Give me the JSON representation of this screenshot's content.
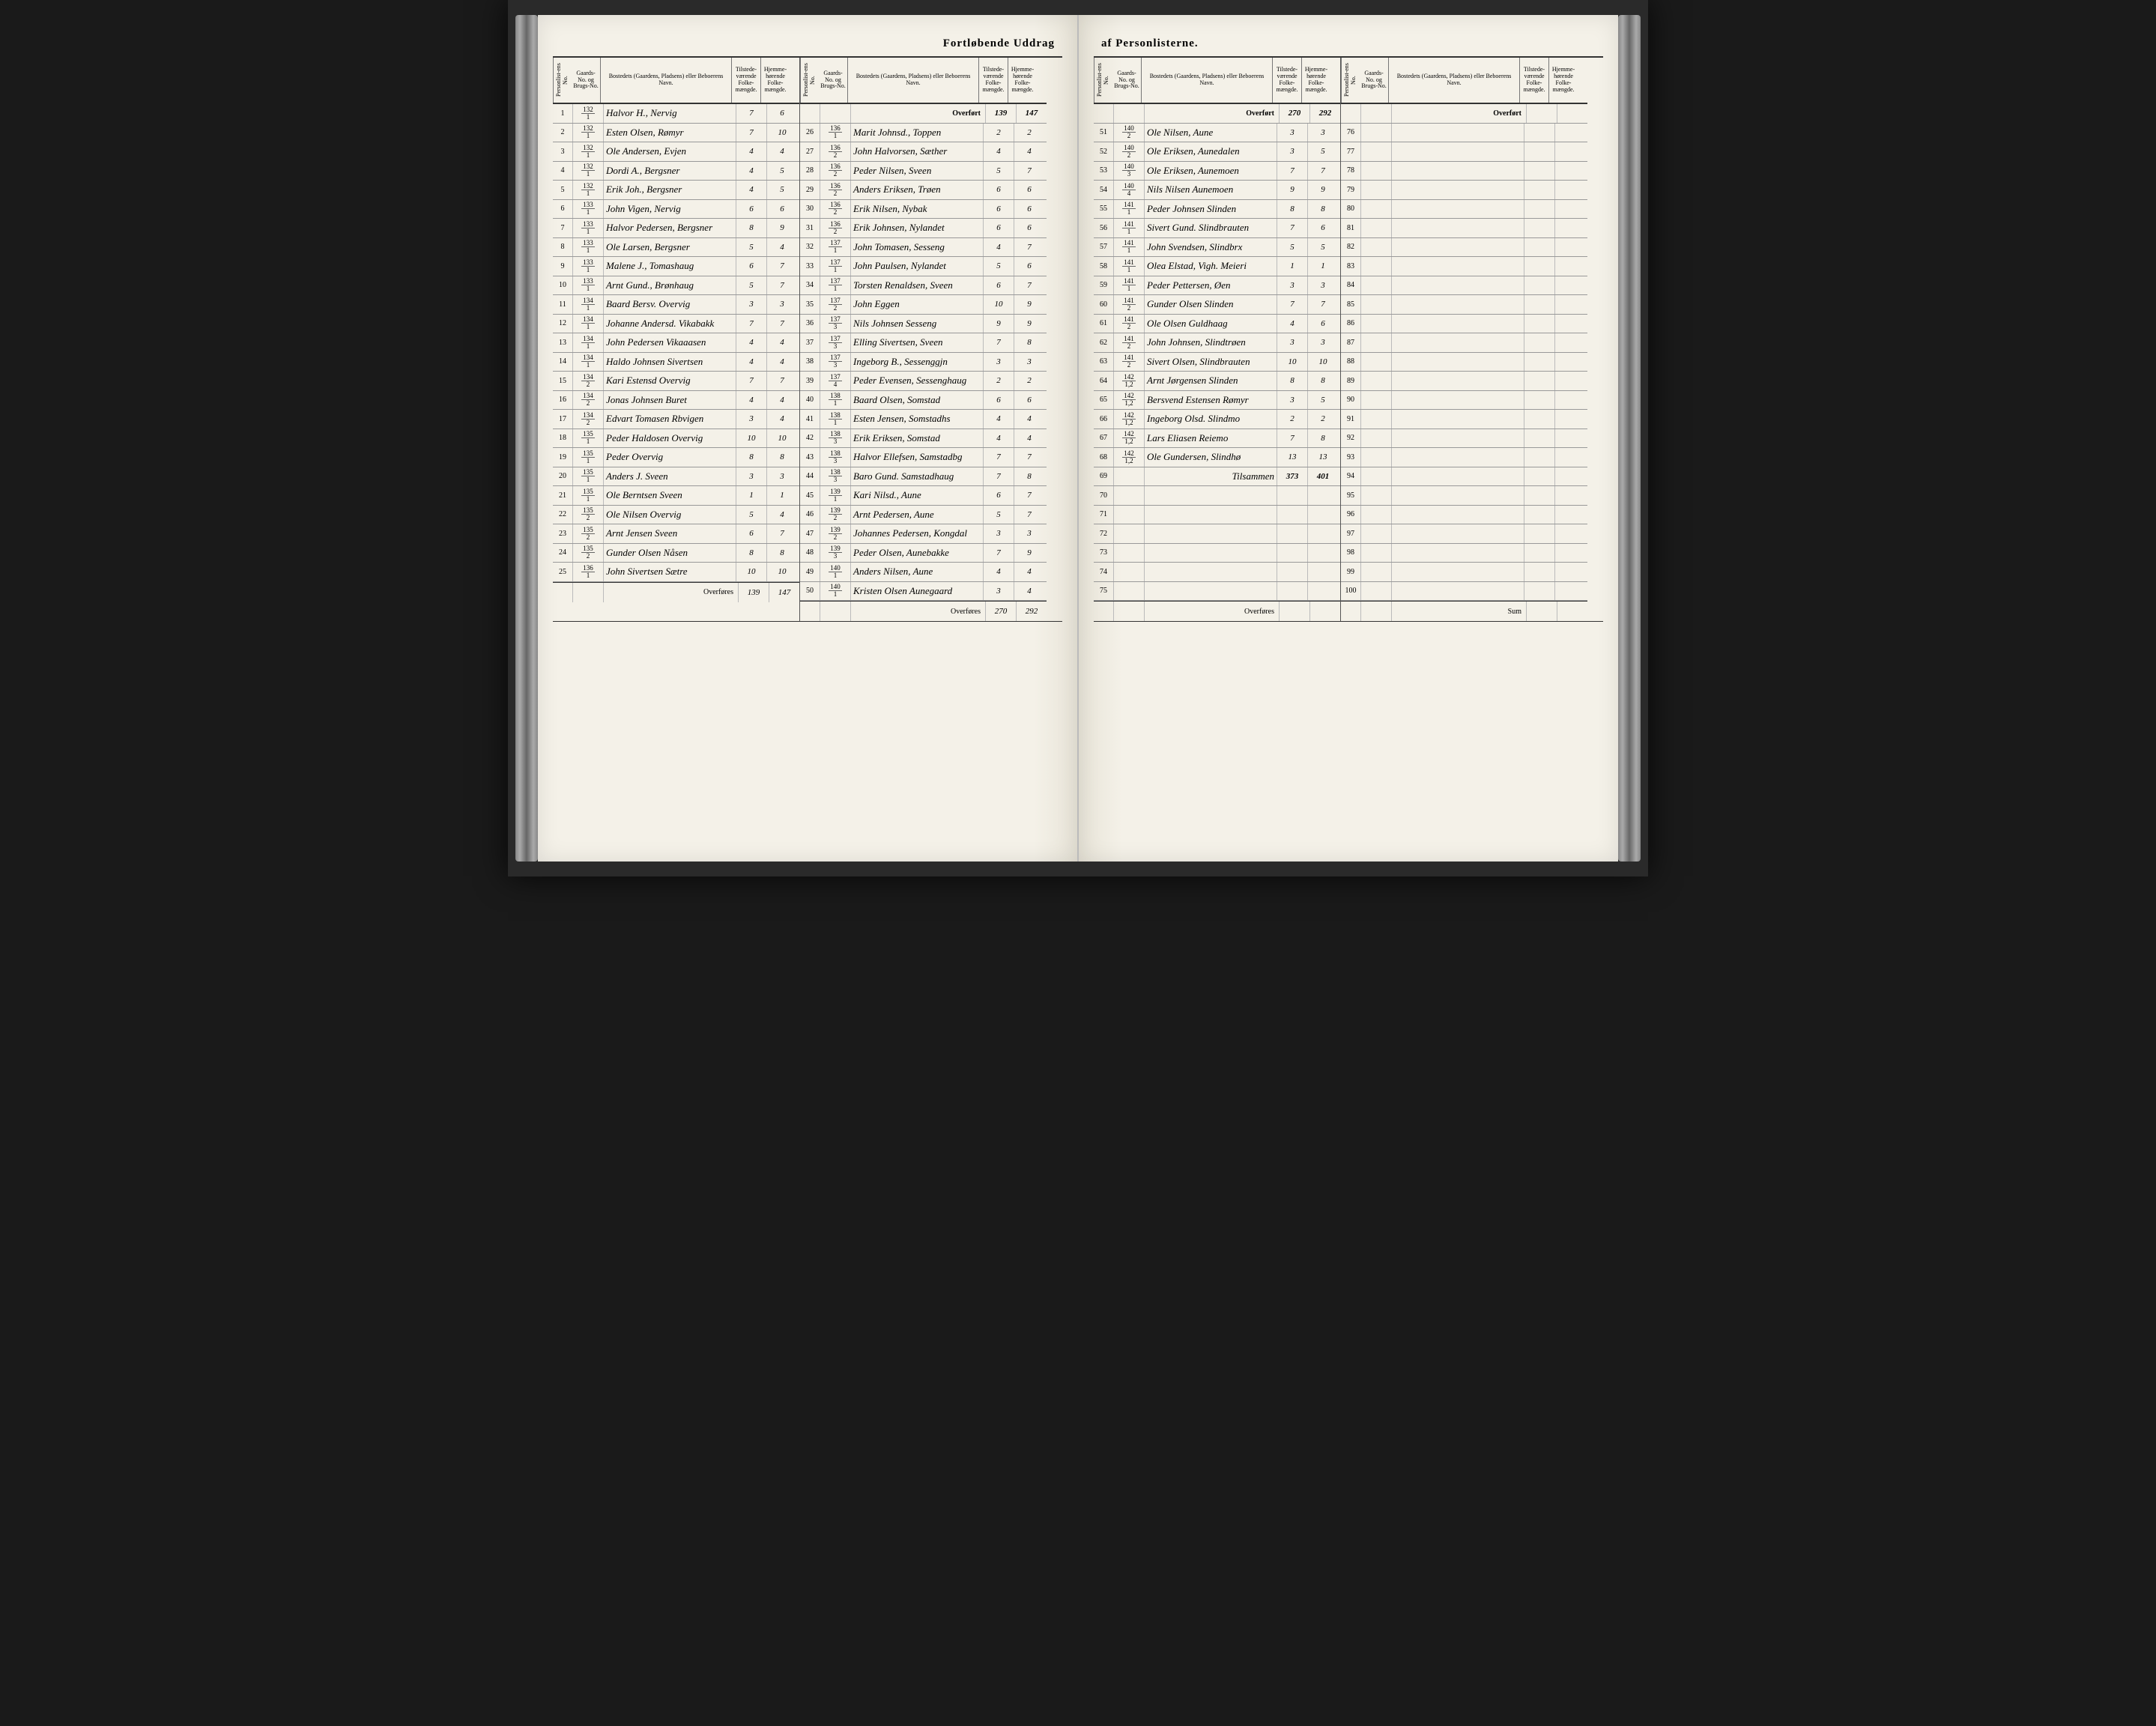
{
  "title": {
    "left": "Fortløbende Uddrag",
    "right": "af Personlisterne."
  },
  "headers": {
    "person": "Personlist-ens No.",
    "gaard": "Gaards-No. og Brugs-No.",
    "bosted": "Bostedets (Gaardens, Pladsens) eller Beboerens Navn.",
    "tilst": "Tilstede-værende Folke-mængde.",
    "hjem": "Hjemme-hørende Folke-mængde."
  },
  "carry": {
    "over": "Overført",
    "under": "Overføres",
    "sum": "Tilsammen",
    "sumlbl": "Sum"
  },
  "block1": {
    "rows": [
      {
        "n": "1",
        "g1": "132",
        "g2": "1",
        "b": "Halvor H., Nervig",
        "t": "7",
        "h": "6"
      },
      {
        "n": "2",
        "g1": "132",
        "g2": "1",
        "b": "Esten Olsen, Rømyr",
        "t": "7",
        "h": "10"
      },
      {
        "n": "3",
        "g1": "132",
        "g2": "1",
        "b": "Ole Andersen, Evjen",
        "t": "4",
        "h": "4"
      },
      {
        "n": "4",
        "g1": "132",
        "g2": "1",
        "b": "Dordi A., Bergsner",
        "t": "4",
        "h": "5"
      },
      {
        "n": "5",
        "g1": "132",
        "g2": "1",
        "b": "Erik Joh., Bergsner",
        "t": "4",
        "h": "5"
      },
      {
        "n": "6",
        "g1": "133",
        "g2": "1",
        "b": "John Vigen, Nervig",
        "t": "6",
        "h": "6"
      },
      {
        "n": "7",
        "g1": "133",
        "g2": "1",
        "b": "Halvor Pedersen, Bergsner",
        "t": "8",
        "h": "9"
      },
      {
        "n": "8",
        "g1": "133",
        "g2": "1",
        "b": "Ole Larsen, Bergsner",
        "t": "5",
        "h": "4"
      },
      {
        "n": "9",
        "g1": "133",
        "g2": "1",
        "b": "Malene J., Tomashaug",
        "t": "6",
        "h": "7"
      },
      {
        "n": "10",
        "g1": "133",
        "g2": "1",
        "b": "Arnt Gund., Brønhaug",
        "t": "5",
        "h": "7"
      },
      {
        "n": "11",
        "g1": "134",
        "g2": "1",
        "b": "Baard Bersv. Overvig",
        "t": "3",
        "h": "3"
      },
      {
        "n": "12",
        "g1": "134",
        "g2": "1",
        "b": "Johanne Andersd. Vikabakk",
        "t": "7",
        "h": "7"
      },
      {
        "n": "13",
        "g1": "134",
        "g2": "1",
        "b": "John Pedersen Vikaaasen",
        "t": "4",
        "h": "4"
      },
      {
        "n": "14",
        "g1": "134",
        "g2": "1",
        "b": "Haldo Johnsen Sivertsen",
        "t": "4",
        "h": "4"
      },
      {
        "n": "15",
        "g1": "134",
        "g2": "2",
        "b": "Kari Estensd Overvig",
        "t": "7",
        "h": "7"
      },
      {
        "n": "16",
        "g1": "134",
        "g2": "2",
        "b": "Jonas Johnsen Buret",
        "t": "4",
        "h": "4"
      },
      {
        "n": "17",
        "g1": "134",
        "g2": "2",
        "b": "Edvart Tomasen Rbvigen",
        "t": "3",
        "h": "4"
      },
      {
        "n": "18",
        "g1": "135",
        "g2": "1",
        "b": "Peder Haldosen Overvig",
        "t": "10",
        "h": "10"
      },
      {
        "n": "19",
        "g1": "135",
        "g2": "1",
        "b": "Peder Overvig",
        "t": "8",
        "h": "8"
      },
      {
        "n": "20",
        "g1": "135",
        "g2": "1",
        "b": "Anders J. Sveen",
        "t": "3",
        "h": "3"
      },
      {
        "n": "21",
        "g1": "135",
        "g2": "1",
        "b": "Ole Berntsen Sveen",
        "t": "1",
        "h": "1"
      },
      {
        "n": "22",
        "g1": "135",
        "g2": "2",
        "b": "Ole Nilsen Overvig",
        "t": "5",
        "h": "4"
      },
      {
        "n": "23",
        "g1": "135",
        "g2": "2",
        "b": "Arnt Jensen Sveen",
        "t": "6",
        "h": "7"
      },
      {
        "n": "24",
        "g1": "135",
        "g2": "2",
        "b": "Gunder Olsen Nåsen",
        "t": "8",
        "h": "8"
      },
      {
        "n": "25",
        "g1": "136",
        "g2": "1",
        "b": "John Sivertsen Sætre",
        "t": "10",
        "h": "10"
      }
    ],
    "carry_t": "139",
    "carry_h": "147"
  },
  "block2": {
    "over_t": "139",
    "over_h": "147",
    "rows": [
      {
        "n": "26",
        "g1": "136",
        "g2": "1",
        "b": "Marit Johnsd., Toppen",
        "t": "2",
        "h": "2"
      },
      {
        "n": "27",
        "g1": "136",
        "g2": "2",
        "b": "John Halvorsen, Sæther",
        "t": "4",
        "h": "4"
      },
      {
        "n": "28",
        "g1": "136",
        "g2": "2",
        "b": "Peder Nilsen, Sveen",
        "t": "5",
        "h": "7"
      },
      {
        "n": "29",
        "g1": "136",
        "g2": "2",
        "b": "Anders Eriksen, Trøen",
        "t": "6",
        "h": "6"
      },
      {
        "n": "30",
        "g1": "136",
        "g2": "2",
        "b": "Erik Nilsen, Nybak",
        "t": "6",
        "h": "6"
      },
      {
        "n": "31",
        "g1": "136",
        "g2": "2",
        "b": "Erik Johnsen, Nylandet",
        "t": "6",
        "h": "6"
      },
      {
        "n": "32",
        "g1": "137",
        "g2": "1",
        "b": "John Tomasen, Sesseng",
        "t": "4",
        "h": "7"
      },
      {
        "n": "33",
        "g1": "137",
        "g2": "1",
        "b": "John Paulsen, Nylandet",
        "t": "5",
        "h": "6"
      },
      {
        "n": "34",
        "g1": "137",
        "g2": "1",
        "b": "Torsten Renaldsen, Sveen",
        "t": "6",
        "h": "7"
      },
      {
        "n": "35",
        "g1": "137",
        "g2": "2",
        "b": "John Eggen",
        "t": "10",
        "h": "9"
      },
      {
        "n": "36",
        "g1": "137",
        "g2": "3",
        "b": "Nils Johnsen Sesseng",
        "t": "9",
        "h": "9"
      },
      {
        "n": "37",
        "g1": "137",
        "g2": "3",
        "b": "Elling Sivertsen, Sveen",
        "t": "7",
        "h": "8"
      },
      {
        "n": "38",
        "g1": "137",
        "g2": "3",
        "b": "Ingeborg B., Sessenggjn",
        "t": "3",
        "h": "3"
      },
      {
        "n": "39",
        "g1": "137",
        "g2": "4",
        "b": "Peder Evensen, Sessenghaug",
        "t": "2",
        "h": "2"
      },
      {
        "n": "40",
        "g1": "138",
        "g2": "1",
        "b": "Baard Olsen, Somstad",
        "t": "6",
        "h": "6"
      },
      {
        "n": "41",
        "g1": "138",
        "g2": "1",
        "b": "Esten Jensen, Somstadhs",
        "t": "4",
        "h": "4"
      },
      {
        "n": "42",
        "g1": "138",
        "g2": "3",
        "b": "Erik Eriksen, Somstad",
        "t": "4",
        "h": "4"
      },
      {
        "n": "43",
        "g1": "138",
        "g2": "3",
        "b": "Halvor Ellefsen, Samstadbg",
        "t": "7",
        "h": "7"
      },
      {
        "n": "44",
        "g1": "138",
        "g2": "3",
        "b": "Baro Gund. Samstadhaug",
        "t": "7",
        "h": "8"
      },
      {
        "n": "45",
        "g1": "139",
        "g2": "1",
        "b": "Kari Nilsd., Aune",
        "t": "6",
        "h": "7"
      },
      {
        "n": "46",
        "g1": "139",
        "g2": "2",
        "b": "Arnt Pedersen, Aune",
        "t": "5",
        "h": "7"
      },
      {
        "n": "47",
        "g1": "139",
        "g2": "2",
        "b": "Johannes Pedersen, Kongdal",
        "t": "3",
        "h": "3"
      },
      {
        "n": "48",
        "g1": "139",
        "g2": "3",
        "b": "Peder Olsen, Aunebakke",
        "t": "7",
        "h": "9"
      },
      {
        "n": "49",
        "g1": "140",
        "g2": "1",
        "b": "Anders Nilsen, Aune",
        "t": "4",
        "h": "4"
      },
      {
        "n": "50",
        "g1": "140",
        "g2": "1",
        "b": "Kristen Olsen Aunegaard",
        "t": "3",
        "h": "4"
      }
    ],
    "carry_t": "270",
    "carry_h": "292"
  },
  "block3": {
    "over_t": "270",
    "over_h": "292",
    "rows": [
      {
        "n": "51",
        "g1": "140",
        "g2": "2",
        "b": "Ole Nilsen, Aune",
        "t": "3",
        "h": "3"
      },
      {
        "n": "52",
        "g1": "140",
        "g2": "2",
        "b": "Ole Eriksen, Aunedalen",
        "t": "3",
        "h": "5"
      },
      {
        "n": "53",
        "g1": "140",
        "g2": "3",
        "b": "Ole Eriksen, Aunemoen",
        "t": "7",
        "h": "7"
      },
      {
        "n": "54",
        "g1": "140",
        "g2": "4",
        "b": "Nils Nilsen Aunemoen",
        "t": "9",
        "h": "9"
      },
      {
        "n": "55",
        "g1": "141",
        "g2": "1",
        "b": "Peder Johnsen Slinden",
        "t": "8",
        "h": "8"
      },
      {
        "n": "56",
        "g1": "141",
        "g2": "1",
        "b": "Sivert Gund. Slindbrauten",
        "t": "7",
        "h": "6"
      },
      {
        "n": "57",
        "g1": "141",
        "g2": "1",
        "b": "John Svendsen, Slindbrx",
        "t": "5",
        "h": "5"
      },
      {
        "n": "58",
        "g1": "141",
        "g2": "1",
        "b": "Olea Elstad, Vigh. Meieri",
        "t": "1",
        "h": "1"
      },
      {
        "n": "59",
        "g1": "141",
        "g2": "1",
        "b": "Peder Pettersen, Øen",
        "t": "3",
        "h": "3"
      },
      {
        "n": "60",
        "g1": "141",
        "g2": "2",
        "b": "Gunder Olsen Slinden",
        "t": "7",
        "h": "7"
      },
      {
        "n": "61",
        "g1": "141",
        "g2": "2",
        "b": "Ole Olsen Guldhaag",
        "t": "4",
        "h": "6"
      },
      {
        "n": "62",
        "g1": "141",
        "g2": "2",
        "b": "John Johnsen, Slindtrøen",
        "t": "3",
        "h": "3"
      },
      {
        "n": "63",
        "g1": "141",
        "g2": "2",
        "b": "Sivert Olsen, Slindbrauten",
        "t": "10",
        "h": "10"
      },
      {
        "n": "64",
        "g1": "142",
        "g2": "1,2",
        "b": "Arnt Jørgensen Slinden",
        "t": "8",
        "h": "8"
      },
      {
        "n": "65",
        "g1": "142",
        "g2": "1,2",
        "b": "Bersvend Estensen Rømyr",
        "t": "3",
        "h": "5"
      },
      {
        "n": "66",
        "g1": "142",
        "g2": "1,2",
        "b": "Ingeborg Olsd. Slindmo",
        "t": "2",
        "h": "2"
      },
      {
        "n": "67",
        "g1": "142",
        "g2": "1,2",
        "b": "Lars Eliasen Reiemo",
        "t": "7",
        "h": "8"
      },
      {
        "n": "68",
        "g1": "142",
        "g2": "1,2",
        "b": "Ole Gundersen, Slindhø",
        "t": "13",
        "h": "13"
      },
      {
        "n": "69",
        "g1": "",
        "g2": "",
        "b": "",
        "t": "",
        "h": ""
      },
      {
        "n": "70",
        "g1": "",
        "g2": "",
        "b": "",
        "t": "",
        "h": ""
      },
      {
        "n": "71",
        "g1": "",
        "g2": "",
        "b": "",
        "t": "",
        "h": ""
      },
      {
        "n": "72",
        "g1": "",
        "g2": "",
        "b": "",
        "t": "",
        "h": ""
      },
      {
        "n": "73",
        "g1": "",
        "g2": "",
        "b": "",
        "t": "",
        "h": ""
      },
      {
        "n": "74",
        "g1": "",
        "g2": "",
        "b": "",
        "t": "",
        "h": ""
      },
      {
        "n": "75",
        "g1": "",
        "g2": "",
        "b": "",
        "t": "",
        "h": ""
      }
    ],
    "sum_t": "373",
    "sum_h": "401",
    "carry_t": "",
    "carry_h": ""
  },
  "block4": {
    "rows": [
      {
        "n": "76"
      },
      {
        "n": "77"
      },
      {
        "n": "78"
      },
      {
        "n": "79"
      },
      {
        "n": "80"
      },
      {
        "n": "81"
      },
      {
        "n": "82"
      },
      {
        "n": "83"
      },
      {
        "n": "84"
      },
      {
        "n": "85"
      },
      {
        "n": "86"
      },
      {
        "n": "87"
      },
      {
        "n": "88"
      },
      {
        "n": "89"
      },
      {
        "n": "90"
      },
      {
        "n": "91"
      },
      {
        "n": "92"
      },
      {
        "n": "93"
      },
      {
        "n": "94"
      },
      {
        "n": "95"
      },
      {
        "n": "96"
      },
      {
        "n": "97"
      },
      {
        "n": "98"
      },
      {
        "n": "99"
      },
      {
        "n": "100"
      }
    ]
  },
  "colors": {
    "paper": "#f4f1e8",
    "ink": "#2a2a2a",
    "rule": "#999",
    "dark": "#1a1a1a"
  }
}
